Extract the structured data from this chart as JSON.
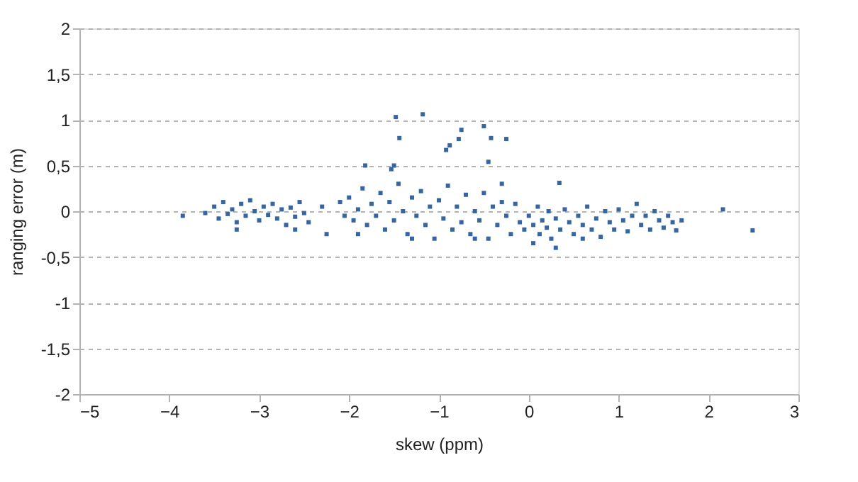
{
  "chart_data": {
    "type": "scatter",
    "xlabel": "skew (ppm)",
    "ylabel": "ranging error (m)",
    "xlim": [
      -5,
      3
    ],
    "xticks": [
      -5,
      -4,
      -3,
      -2,
      -1,
      0,
      1,
      2,
      3
    ],
    "ylim": [
      -2,
      2
    ],
    "yticks": [
      {
        "value": -2,
        "label": "-2"
      },
      {
        "value": -1.5,
        "label": "-1,5"
      },
      {
        "value": -1,
        "label": "-1"
      },
      {
        "value": -0.5,
        "label": "-0,5"
      },
      {
        "value": 0,
        "label": "0"
      },
      {
        "value": 0.5,
        "label": "0,5"
      },
      {
        "value": 1,
        "label": "1"
      },
      {
        "value": 1.5,
        "label": "1,5"
      },
      {
        "value": 2,
        "label": "2"
      }
    ],
    "grid": "y",
    "legend": false,
    "marker": "square",
    "series": [
      {
        "color": "#3465a4",
        "x": [
          -3.6,
          -3.5,
          -3.45,
          -3.4,
          -3.35,
          -3.3,
          -3.25,
          -3.2,
          -3.15,
          -3.1,
          -3.05,
          -3.0,
          -2.95,
          -2.9,
          -2.85,
          -2.8,
          -2.75,
          -2.7,
          -2.65,
          -2.6,
          -2.55,
          -2.5,
          -2.45,
          -3.25,
          -2.6,
          -2.3,
          -2.25,
          -2.1,
          -2.05,
          -2.0,
          -1.95,
          -1.9,
          -1.85,
          -1.8,
          -1.75,
          -1.7,
          -1.65,
          -1.6,
          -1.55,
          -1.5,
          -1.45,
          -1.4,
          -1.35,
          -1.3,
          -1.25,
          -1.2,
          -1.15,
          -1.1,
          -1.05,
          -1.0,
          -0.95,
          -0.9,
          -0.85,
          -0.8,
          -0.75,
          -0.7,
          -0.65,
          -0.6,
          -0.55,
          -0.5,
          -0.45,
          -0.4,
          -0.35,
          -0.3,
          -0.25,
          -0.2,
          -0.15,
          -0.1,
          -0.05,
          0.0,
          0.05,
          0.1,
          0.12,
          0.15,
          0.2,
          0.22,
          0.25,
          0.3,
          0.35,
          0.4,
          0.45,
          0.5,
          0.55,
          0.6,
          0.65,
          0.7,
          0.75,
          0.8,
          0.85,
          0.9,
          0.95,
          1.0,
          1.05,
          1.1,
          1.15,
          1.2,
          1.25,
          1.3,
          1.35,
          1.4,
          1.45,
          1.5,
          1.55,
          1.6,
          1.7,
          -1.9,
          -1.3,
          -0.6,
          0.05,
          0.6,
          -0.3,
          -1.48,
          -1.18,
          -1.44,
          -0.75,
          -0.5,
          -0.42,
          -0.25,
          -0.78,
          -0.92,
          -0.88,
          -1.82,
          -1.5,
          -1.53,
          -0.45,
          0.34,
          2.16,
          2.49,
          -3.85,
          0.3,
          1.64
        ],
        "values": [
          -0.02,
          0.05,
          -0.08,
          0.1,
          -0.03,
          0.02,
          -0.12,
          0.08,
          -0.05,
          0.12,
          0.0,
          -0.1,
          0.05,
          -0.04,
          0.08,
          -0.08,
          0.02,
          -0.15,
          0.04,
          -0.06,
          0.1,
          -0.02,
          -0.12,
          -0.2,
          -0.2,
          0.05,
          -0.25,
          0.1,
          -0.05,
          0.15,
          -0.1,
          0.02,
          0.25,
          -0.15,
          0.08,
          -0.05,
          0.2,
          -0.2,
          0.1,
          -0.1,
          0.3,
          0.0,
          -0.25,
          0.15,
          -0.05,
          0.22,
          -0.15,
          0.05,
          -0.3,
          0.12,
          -0.08,
          0.28,
          -0.2,
          0.05,
          -0.12,
          0.18,
          -0.25,
          0.0,
          -0.1,
          0.2,
          -0.3,
          0.05,
          -0.15,
          0.1,
          -0.05,
          -0.25,
          0.08,
          -0.12,
          -0.2,
          -0.05,
          -0.15,
          0.05,
          -0.25,
          -0.1,
          -0.18,
          0.0,
          -0.3,
          -0.08,
          -0.2,
          0.02,
          -0.12,
          -0.25,
          -0.05,
          -0.15,
          0.05,
          -0.2,
          -0.08,
          -0.28,
          0.0,
          -0.12,
          -0.2,
          0.02,
          -0.1,
          -0.22,
          -0.05,
          0.08,
          -0.15,
          -0.05,
          -0.2,
          0.0,
          -0.1,
          -0.18,
          -0.05,
          -0.12,
          -0.1,
          -0.25,
          -0.3,
          -0.3,
          -0.35,
          -0.3,
          0.3,
          1.03,
          1.06,
          0.8,
          0.89,
          0.93,
          0.8,
          0.79,
          0.79,
          0.67,
          0.72,
          0.5,
          0.5,
          0.46,
          0.54,
          0.31,
          0.02,
          -0.21,
          -0.05,
          -0.4,
          -0.21
        ]
      }
    ]
  }
}
